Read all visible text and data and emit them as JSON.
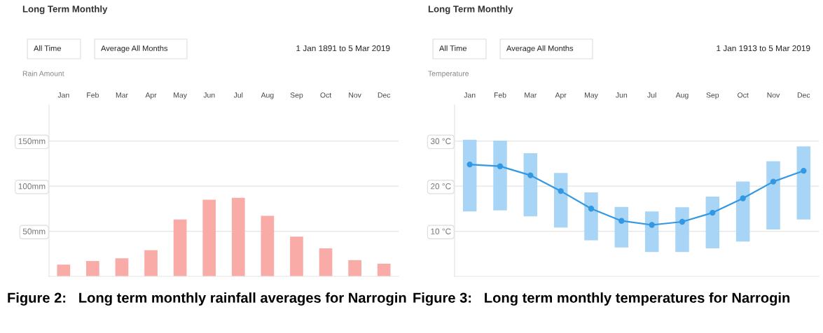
{
  "chart_data": [
    {
      "type": "bar",
      "title": "Long Term Monthly",
      "subtitle": "1 Jan 1891 to 5 Mar 2019",
      "ylabel": "Rain Amount",
      "annotations": [
        "All Time",
        "Average All Months",
        "Figure 2:   Long term monthly rainfall averages for Narrogin"
      ],
      "categories": [
        "Jan",
        "Feb",
        "Mar",
        "Apr",
        "May",
        "Jun",
        "Jul",
        "Aug",
        "Sep",
        "Oct",
        "Nov",
        "Dec"
      ],
      "series": [
        {
          "color": "#f9aca7",
          "values": [
            13,
            17,
            20,
            29,
            63,
            85,
            87,
            67,
            44,
            31,
            18,
            14
          ]
        }
      ],
      "ylim": [
        0,
        190
      ],
      "yticks": [
        {
          "value": 50,
          "label": "50mm"
        },
        {
          "value": 100,
          "label": "100mm"
        },
        {
          "value": 150,
          "label": "150mm"
        }
      ],
      "grid": "y"
    },
    {
      "type": "bar",
      "title": "Long Term Monthly",
      "subtitle": "1 Jan 1913 to 5 Mar 2019",
      "ylabel": "Temperature",
      "annotations": [
        "All Time",
        "Average All Months",
        "Figure 3:   Long term monthly temperatures for Narrogin"
      ],
      "categories": [
        "Jan",
        "Feb",
        "Mar",
        "Apr",
        "May",
        "Jun",
        "Jul",
        "Aug",
        "Sep",
        "Oct",
        "Nov",
        "Dec"
      ],
      "series": [
        {
          "type": "bar",
          "color": "#a8d4f5",
          "base": [
            14.4,
            14.6,
            13.3,
            10.8,
            8.0,
            6.4,
            5.4,
            5.4,
            6.2,
            7.7,
            10.4,
            12.6
          ],
          "values": [
            15.9,
            15.5,
            14.0,
            12.1,
            10.6,
            9.0,
            9.0,
            9.9,
            11.5,
            13.3,
            15.1,
            16.2
          ]
        },
        {
          "type": "line",
          "color": "#3398e3",
          "marker": "circle",
          "line_style": "solid",
          "values": [
            24.8,
            24.4,
            22.4,
            18.9,
            15.0,
            12.3,
            11.4,
            12.1,
            14.1,
            17.3,
            21.0,
            23.4
          ]
        }
      ],
      "ylim": [
        0,
        38
      ],
      "yticks": [
        {
          "value": 10,
          "label": "10 °C"
        },
        {
          "value": 20,
          "label": "20 °C"
        },
        {
          "value": 30,
          "label": "30 °C"
        }
      ],
      "grid": "y"
    }
  ]
}
